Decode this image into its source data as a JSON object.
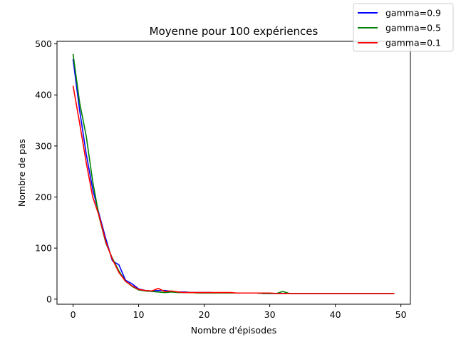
{
  "chart_data": {
    "type": "line",
    "title": "Moyenne pour 100 expériences",
    "xlabel": "Nombre d'épisodes",
    "ylabel": "Nombre de pas",
    "xlim": [
      -2.45,
      51.45
    ],
    "ylim": [
      -10,
      505
    ],
    "xticks": [
      0,
      10,
      20,
      30,
      40,
      50
    ],
    "yticks": [
      0,
      100,
      200,
      300,
      400,
      500
    ],
    "grid": false,
    "legend_position": "top-right",
    "x": [
      0,
      1,
      2,
      3,
      4,
      5,
      6,
      7,
      8,
      9,
      10,
      11,
      12,
      13,
      14,
      15,
      16,
      17,
      18,
      19,
      20,
      21,
      22,
      23,
      24,
      25,
      26,
      27,
      28,
      29,
      30,
      31,
      32,
      33,
      34,
      35,
      36,
      37,
      38,
      39,
      40,
      41,
      42,
      43,
      44,
      45,
      46,
      47,
      48,
      49
    ],
    "series": [
      {
        "name": "gamma=0.9",
        "color": "#0000ff",
        "values": [
          470,
          370,
          285,
          215,
          165,
          118,
          75,
          67,
          37,
          30,
          20,
          17,
          16,
          17,
          17,
          15,
          14,
          14,
          13,
          13,
          13,
          13,
          12,
          12,
          12,
          12,
          12,
          12,
          12,
          11,
          11,
          11,
          11,
          11,
          11,
          11,
          11,
          11,
          11,
          11,
          11,
          11,
          11,
          11,
          11,
          11,
          11,
          11,
          11,
          11
        ]
      },
      {
        "name": "gamma=0.5",
        "color": "#008000",
        "values": [
          480,
          385,
          320,
          230,
          160,
          110,
          80,
          55,
          35,
          25,
          18,
          16,
          15,
          14,
          13,
          14,
          13,
          13,
          13,
          12,
          12,
          12,
          12,
          12,
          12,
          12,
          12,
          12,
          12,
          11,
          11,
          11,
          15,
          11,
          11,
          11,
          11,
          11,
          11,
          11,
          11,
          11,
          11,
          11,
          11,
          11,
          11,
          11,
          11,
          11
        ]
      },
      {
        "name": "gamma=0.1",
        "color": "#ff0000",
        "values": [
          418,
          345,
          268,
          200,
          162,
          112,
          78,
          52,
          35,
          26,
          19,
          17,
          16,
          21,
          15,
          16,
          14,
          13,
          13,
          13,
          13,
          13,
          13,
          13,
          13,
          12,
          12,
          12,
          12,
          12,
          12,
          11,
          11,
          11,
          11,
          11,
          11,
          11,
          11,
          11,
          11,
          11,
          11,
          11,
          11,
          11,
          11,
          11,
          11,
          11
        ]
      }
    ]
  }
}
